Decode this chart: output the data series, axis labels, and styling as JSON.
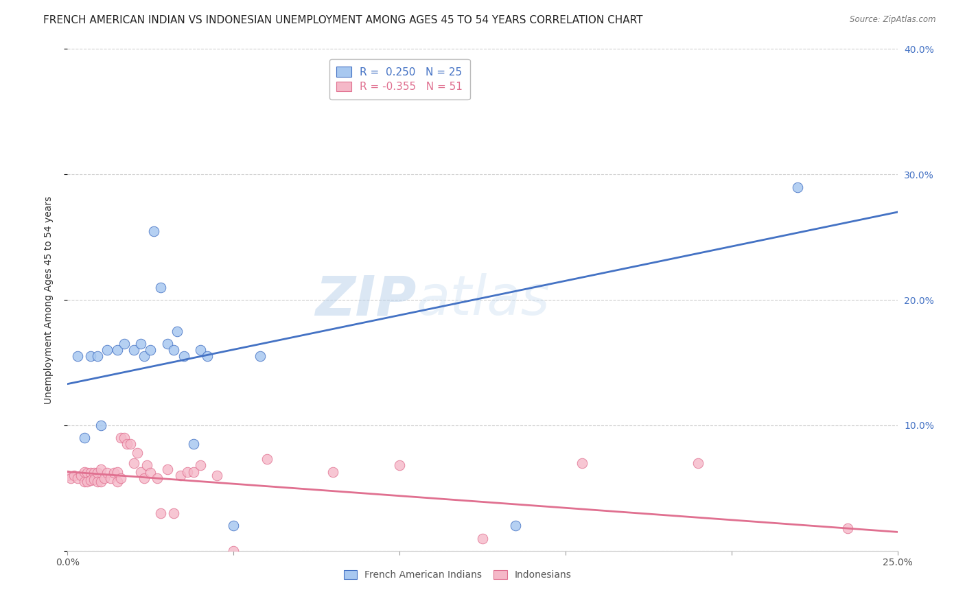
{
  "title": "FRENCH AMERICAN INDIAN VS INDONESIAN UNEMPLOYMENT AMONG AGES 45 TO 54 YEARS CORRELATION CHART",
  "source": "Source: ZipAtlas.com",
  "ylabel": "Unemployment Among Ages 45 to 54 years",
  "watermark_zip": "ZIP",
  "watermark_atlas": "atlas",
  "legend_blue_r": "0.250",
  "legend_blue_n": "25",
  "legend_pink_r": "-0.355",
  "legend_pink_n": "51",
  "legend_blue_label": "French American Indians",
  "legend_pink_label": "Indonesians",
  "xlim": [
    0.0,
    0.25
  ],
  "ylim": [
    0.0,
    0.4
  ],
  "blue_scatter_x": [
    0.003,
    0.005,
    0.007,
    0.009,
    0.01,
    0.012,
    0.015,
    0.017,
    0.02,
    0.022,
    0.023,
    0.025,
    0.026,
    0.028,
    0.03,
    0.032,
    0.033,
    0.035,
    0.038,
    0.04,
    0.042,
    0.05,
    0.058,
    0.135,
    0.22
  ],
  "blue_scatter_y": [
    0.155,
    0.09,
    0.155,
    0.155,
    0.1,
    0.16,
    0.16,
    0.165,
    0.16,
    0.165,
    0.155,
    0.16,
    0.255,
    0.21,
    0.165,
    0.16,
    0.175,
    0.155,
    0.085,
    0.16,
    0.155,
    0.02,
    0.155,
    0.02,
    0.29
  ],
  "pink_scatter_x": [
    0.0,
    0.001,
    0.002,
    0.003,
    0.004,
    0.005,
    0.005,
    0.006,
    0.006,
    0.007,
    0.007,
    0.008,
    0.008,
    0.009,
    0.009,
    0.01,
    0.01,
    0.011,
    0.012,
    0.013,
    0.014,
    0.015,
    0.015,
    0.016,
    0.016,
    0.017,
    0.018,
    0.019,
    0.02,
    0.021,
    0.022,
    0.023,
    0.024,
    0.025,
    0.027,
    0.028,
    0.03,
    0.032,
    0.034,
    0.036,
    0.038,
    0.04,
    0.045,
    0.05,
    0.06,
    0.08,
    0.1,
    0.125,
    0.155,
    0.19,
    0.235
  ],
  "pink_scatter_y": [
    0.06,
    0.058,
    0.06,
    0.058,
    0.06,
    0.063,
    0.055,
    0.062,
    0.055,
    0.062,
    0.056,
    0.062,
    0.057,
    0.062,
    0.055,
    0.065,
    0.055,
    0.058,
    0.062,
    0.058,
    0.062,
    0.063,
    0.055,
    0.09,
    0.058,
    0.09,
    0.085,
    0.085,
    0.07,
    0.078,
    0.063,
    0.058,
    0.068,
    0.062,
    0.058,
    0.03,
    0.065,
    0.03,
    0.06,
    0.063,
    0.063,
    0.068,
    0.06,
    0.0,
    0.073,
    0.063,
    0.068,
    0.01,
    0.07,
    0.07,
    0.018
  ],
  "blue_line_x0": 0.0,
  "blue_line_y0": 0.133,
  "blue_line_x1": 0.25,
  "blue_line_y1": 0.27,
  "pink_line_x0": 0.0,
  "pink_line_y0": 0.063,
  "pink_line_x1": 0.25,
  "pink_line_y1": 0.015,
  "blue_color": "#a8c8f0",
  "pink_color": "#f5b8c8",
  "blue_line_color": "#4472c4",
  "pink_line_color": "#e07090",
  "background_color": "#ffffff",
  "grid_color": "#cccccc",
  "title_fontsize": 11,
  "axis_label_fontsize": 10,
  "tick_fontsize": 10,
  "right_tick_color": "#4472c4"
}
